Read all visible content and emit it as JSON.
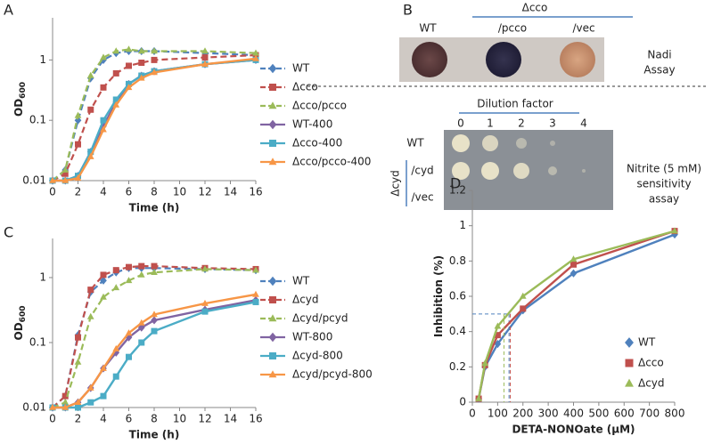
{
  "chart_data": [
    {
      "panel_label": "A",
      "type": "line",
      "log_y": true,
      "xlabel": "Time (h)",
      "ylabel": "OD",
      "ylabel_sub": "600",
      "x": [
        0,
        1,
        2,
        3,
        4,
        5,
        6,
        7,
        8,
        12,
        16
      ],
      "xlim": [
        0,
        16
      ],
      "xticks": [
        0,
        2,
        4,
        6,
        8,
        10,
        12,
        14,
        16
      ],
      "ylim": [
        0.01,
        5
      ],
      "yticks": [
        0.01,
        0.1,
        1
      ],
      "legend_position": "right",
      "series": [
        {
          "name": "WT",
          "color": "#4f81bd",
          "dashed": true,
          "marker": "diamond",
          "values": [
            0.01,
            0.015,
            0.1,
            0.5,
            1.0,
            1.3,
            1.4,
            1.4,
            1.4,
            1.3,
            1.2
          ]
        },
        {
          "name": "Δcco",
          "color": "#c0504d",
          "dashed": true,
          "marker": "square",
          "values": [
            0.01,
            0.013,
            0.04,
            0.15,
            0.35,
            0.6,
            0.8,
            0.9,
            1.0,
            1.1,
            1.2
          ]
        },
        {
          "name": "Δcco/pcco",
          "color": "#9bbb59",
          "dashed": true,
          "marker": "triangle",
          "values": [
            0.01,
            0.015,
            0.12,
            0.55,
            1.1,
            1.4,
            1.5,
            1.4,
            1.4,
            1.4,
            1.3
          ]
        },
        {
          "name": "WT-400",
          "color": "#8064a2",
          "dashed": false,
          "marker": "diamond",
          "values": [
            0.01,
            0.01,
            0.012,
            0.03,
            0.08,
            0.2,
            0.4,
            0.55,
            0.65,
            0.85,
            1.0
          ]
        },
        {
          "name": "Δcco-400",
          "color": "#4bacc6",
          "dashed": false,
          "marker": "square",
          "values": [
            0.01,
            0.01,
            0.012,
            0.03,
            0.1,
            0.22,
            0.4,
            0.55,
            0.65,
            0.85,
            1.0
          ]
        },
        {
          "name": "Δcco/pcco-400",
          "color": "#f79646",
          "dashed": false,
          "marker": "triangle",
          "values": [
            0.01,
            0.01,
            0.011,
            0.025,
            0.07,
            0.18,
            0.35,
            0.5,
            0.62,
            0.85,
            1.05
          ]
        }
      ]
    },
    {
      "panel_label": "C",
      "type": "line",
      "log_y": true,
      "xlabel": "Time (h)",
      "ylabel": "OD",
      "ylabel_sub": "600",
      "x": [
        0,
        1,
        2,
        3,
        4,
        5,
        6,
        7,
        8,
        12,
        16
      ],
      "xlim": [
        0,
        16
      ],
      "xticks": [
        0,
        2,
        4,
        6,
        8,
        10,
        12,
        14,
        16
      ],
      "ylim": [
        0.01,
        4
      ],
      "yticks": [
        0.01,
        0.1,
        1
      ],
      "legend_position": "right",
      "series": [
        {
          "name": "WT",
          "color": "#4f81bd",
          "dashed": true,
          "marker": "diamond",
          "values": [
            0.01,
            0.015,
            0.13,
            0.6,
            0.9,
            1.2,
            1.4,
            1.4,
            1.4,
            1.35,
            1.3
          ]
        },
        {
          "name": "Δcyd",
          "color": "#c0504d",
          "dashed": true,
          "marker": "square",
          "values": [
            0.01,
            0.015,
            0.12,
            0.65,
            1.1,
            1.3,
            1.45,
            1.5,
            1.5,
            1.4,
            1.35
          ]
        },
        {
          "name": "Δcyd/pcyd",
          "color": "#9bbb59",
          "dashed": true,
          "marker": "triangle",
          "values": [
            0.01,
            0.012,
            0.05,
            0.25,
            0.5,
            0.7,
            0.9,
            1.1,
            1.2,
            1.35,
            1.3
          ]
        },
        {
          "name": "WT-800",
          "color": "#8064a2",
          "dashed": false,
          "marker": "diamond",
          "values": [
            0.01,
            0.01,
            0.012,
            0.02,
            0.04,
            0.07,
            0.12,
            0.17,
            0.22,
            0.32,
            0.45
          ]
        },
        {
          "name": "Δcyd-800",
          "color": "#4bacc6",
          "dashed": false,
          "marker": "square",
          "values": [
            0.01,
            0.01,
            0.01,
            0.012,
            0.015,
            0.03,
            0.06,
            0.1,
            0.15,
            0.3,
            0.42
          ]
        },
        {
          "name": "Δcyd/pcyd-800",
          "color": "#f79646",
          "dashed": false,
          "marker": "triangle",
          "values": [
            0.01,
            0.01,
            0.012,
            0.02,
            0.04,
            0.08,
            0.14,
            0.2,
            0.27,
            0.4,
            0.55
          ]
        }
      ]
    },
    {
      "panel_label": "D",
      "type": "line",
      "log_y": false,
      "xlabel": "DETA-NONOate (µM)",
      "ylabel": "Inhibition (%)",
      "x": [
        25,
        50,
        100,
        200,
        400,
        800
      ],
      "xlim": [
        0,
        800
      ],
      "xticks": [
        0,
        100,
        200,
        300,
        400,
        500,
        600,
        700,
        800
      ],
      "ylim": [
        0,
        1.2
      ],
      "yticks": [
        0,
        0.2,
        0.4,
        0.6,
        0.8,
        1,
        1.2
      ],
      "legend_position": "lower-right",
      "reference_y": 0.5,
      "series": [
        {
          "name": "WT",
          "color": "#4f81bd",
          "marker": "diamond",
          "ic50": 145,
          "values": [
            0.02,
            0.2,
            0.33,
            0.52,
            0.73,
            0.95
          ]
        },
        {
          "name": "Δcco",
          "color": "#c0504d",
          "marker": "square",
          "ic50": 150,
          "values": [
            0.02,
            0.21,
            0.38,
            0.53,
            0.78,
            0.97
          ]
        },
        {
          "name": "Δcyd",
          "color": "#9bbb59",
          "marker": "triangle",
          "ic50": 125,
          "values": [
            0.02,
            0.22,
            0.43,
            0.6,
            0.81,
            0.97
          ]
        }
      ]
    }
  ],
  "assay_panel": {
    "panel_label": "B",
    "nadi": {
      "group_label": "Δcco",
      "columns": [
        "WT",
        "/pcco",
        "/vec"
      ],
      "assay_label": [
        "Nadi",
        "Assay"
      ]
    },
    "nitrite": {
      "title": "Dilution factor",
      "dilutions": [
        "0",
        "1",
        "2",
        "3",
        "4"
      ],
      "rows": [
        "WT",
        "/cyd",
        "/vec"
      ],
      "group_label": "Δcyd",
      "assay_label": [
        "Nitrite (5 mM)",
        "sensitivity",
        "assay"
      ]
    }
  }
}
